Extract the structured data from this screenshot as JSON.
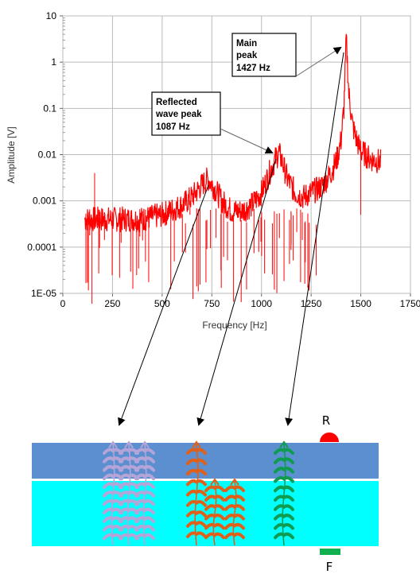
{
  "chart_data": {
    "type": "line",
    "xlabel": "Frequency [Hz]",
    "ylabel": "Amplitude [V]",
    "xlim": [
      0,
      1750
    ],
    "ylim": [
      1e-05,
      10
    ],
    "y_scale": "log",
    "grid": true,
    "x_ticks": [
      "0",
      "250",
      "500",
      "750",
      "1000",
      "1250",
      "1500",
      "1750"
    ],
    "y_ticks": [
      "1E-05",
      "0.0001",
      "0.001",
      "0.01",
      "0.1",
      "1",
      "10"
    ],
    "series": [
      {
        "color": "#ff0000",
        "x": [
          110,
          200,
          300,
          400,
          500,
          600,
          650,
          700,
          730,
          760,
          800,
          850,
          900,
          950,
          1000,
          1040,
          1070,
          1087,
          1100,
          1130,
          1170,
          1210,
          1250,
          1300,
          1350,
          1380,
          1400,
          1415,
          1427,
          1440,
          1460,
          1480,
          1500,
          1550,
          1600
        ],
        "y": [
          0.0004,
          0.0004,
          0.0004,
          0.0004,
          0.0005,
          0.0008,
          0.0012,
          0.0022,
          0.003,
          0.002,
          0.001,
          0.0006,
          0.0006,
          0.0008,
          0.0015,
          0.004,
          0.008,
          0.011,
          0.008,
          0.003,
          0.0015,
          0.0012,
          0.0015,
          0.002,
          0.004,
          0.008,
          0.02,
          0.1,
          3.2,
          0.2,
          0.04,
          0.02,
          0.012,
          0.008,
          0.007
        ]
      }
    ]
  },
  "annotations": [
    {
      "lines": [
        "Main",
        "peak",
        "1427 Hz"
      ]
    },
    {
      "lines": [
        "Reflected",
        "wave peak",
        "1087 Hz"
      ]
    }
  ],
  "diagram": {
    "receiver_label": "R",
    "force_label": "F",
    "colors": {
      "plate_top": "#5b8fd0",
      "plate_bottom": "#00ffff",
      "wave_1": "#b4a4d8",
      "wave_2": "#e0601a",
      "wave_3": "#0f9b50",
      "receiver": "#ff0000",
      "force": "#10b050"
    }
  }
}
